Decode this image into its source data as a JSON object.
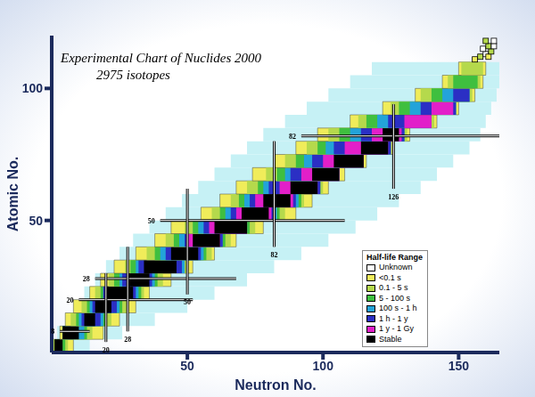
{
  "chart_data": {
    "type": "heatmap",
    "title": "Experimental Chart of Nuclides 2000",
    "subtitle": "2975 isotopes",
    "x_label": "Neutron No.",
    "y_label": "Atomic No.",
    "xlim": [
      0,
      165
    ],
    "ylim": [
      0,
      120
    ],
    "xticks": [
      50,
      100,
      150
    ],
    "yticks": [
      50,
      100
    ],
    "legend": "lower right",
    "legend_title": "Half-life Range",
    "half_life_classes": [
      {
        "label": "Unknown",
        "color": "#ffffff"
      },
      {
        "label": "<0.1 s",
        "color": "#f0ec5a"
      },
      {
        "label": "0.1 - 5 s",
        "color": "#b5d94c"
      },
      {
        "label": "5 - 100 s",
        "color": "#3fbf3f"
      },
      {
        "label": "100 s - 1 h",
        "color": "#23a3d9"
      },
      {
        "label": "1 h - 1 y",
        "color": "#2b2fc4"
      },
      {
        "label": "1 y - 1 Gy",
        "color": "#e21fc9"
      },
      {
        "label": "Stable",
        "color": "#000000"
      }
    ],
    "predicted_region": {
      "color": "#c6f1f5"
    },
    "rows": [
      {
        "z": [
          0,
          5
        ],
        "predicted": [
          0,
          14
        ],
        "bands": [
          [
            1,
            0,
            8
          ],
          [
            2,
            0,
            6
          ],
          [
            3,
            1,
            5
          ],
          [
            7,
            1,
            4
          ]
        ]
      },
      {
        "z": [
          5,
          10
        ],
        "predicted": [
          2,
          26
        ],
        "bands": [
          [
            1,
            3,
            19
          ],
          [
            2,
            4,
            15
          ],
          [
            3,
            4,
            13
          ],
          [
            4,
            4,
            12
          ],
          [
            7,
            4,
            10
          ]
        ]
      },
      {
        "z": [
          10,
          15
        ],
        "predicted": [
          5,
          38
        ],
        "bands": [
          [
            1,
            5,
            25
          ],
          [
            2,
            7,
            22
          ],
          [
            3,
            9,
            20
          ],
          [
            4,
            10,
            19
          ],
          [
            5,
            11,
            18
          ],
          [
            7,
            12,
            16
          ]
        ]
      },
      {
        "z": [
          15,
          20
        ],
        "predicted": [
          8,
          50
        ],
        "bands": [
          [
            1,
            8,
            31
          ],
          [
            2,
            11,
            28
          ],
          [
            3,
            13,
            26
          ],
          [
            4,
            14,
            25
          ],
          [
            5,
            15,
            24
          ],
          [
            7,
            16,
            22
          ]
        ]
      },
      {
        "z": [
          20,
          25
        ],
        "predicted": [
          12,
          60
        ],
        "bands": [
          [
            1,
            14,
            36
          ],
          [
            2,
            16,
            34
          ],
          [
            3,
            18,
            33
          ],
          [
            4,
            19,
            32
          ],
          [
            5,
            19,
            31
          ],
          [
            7,
            20,
            30
          ]
        ]
      },
      {
        "z": [
          25,
          30
        ],
        "predicted": [
          16,
          72
        ],
        "bands": [
          [
            1,
            18,
            44
          ],
          [
            2,
            21,
            41
          ],
          [
            3,
            23,
            39
          ],
          [
            4,
            25,
            38
          ],
          [
            5,
            26,
            37
          ],
          [
            7,
            28,
            36
          ]
        ]
      },
      {
        "z": [
          30,
          35
        ],
        "predicted": [
          20,
          82
        ],
        "bands": [
          [
            1,
            23,
            52
          ],
          [
            2,
            27,
            50
          ],
          [
            3,
            29,
            49
          ],
          [
            4,
            31,
            49
          ],
          [
            5,
            32,
            48
          ],
          [
            7,
            34,
            46
          ]
        ]
      },
      {
        "z": [
          35,
          40
        ],
        "predicted": [
          25,
          92
        ],
        "bands": [
          [
            1,
            31,
            60
          ],
          [
            2,
            35,
            59
          ],
          [
            3,
            38,
            57
          ],
          [
            4,
            40,
            56
          ],
          [
            5,
            42,
            55
          ],
          [
            7,
            44,
            54
          ]
        ]
      },
      {
        "z": [
          40,
          45
        ],
        "predicted": [
          30,
          102
        ],
        "bands": [
          [
            1,
            38,
            68
          ],
          [
            2,
            42,
            66
          ],
          [
            3,
            45,
            64
          ],
          [
            4,
            47,
            63
          ],
          [
            5,
            49,
            63
          ],
          [
            6,
            50,
            62
          ],
          [
            7,
            52,
            62
          ]
        ]
      },
      {
        "z": [
          45,
          50
        ],
        "predicted": [
          36,
          112
        ],
        "bands": [
          [
            1,
            44,
            78
          ],
          [
            2,
            49,
            75
          ],
          [
            3,
            52,
            73
          ],
          [
            4,
            54,
            72
          ],
          [
            5,
            56,
            72
          ],
          [
            6,
            58,
            72
          ],
          [
            7,
            60,
            72
          ]
        ]
      },
      {
        "z": [
          50,
          55
        ],
        "predicted": [
          42,
          120
        ],
        "bands": [
          [
            1,
            55,
            90
          ],
          [
            2,
            59,
            86
          ],
          [
            3,
            62,
            84
          ],
          [
            4,
            64,
            83
          ],
          [
            5,
            66,
            82
          ],
          [
            6,
            68,
            81
          ],
          [
            7,
            70,
            80
          ]
        ]
      },
      {
        "z": [
          55,
          60
        ],
        "predicted": [
          48,
          128
        ],
        "bands": [
          [
            1,
            62,
            96
          ],
          [
            2,
            66,
            93
          ],
          [
            3,
            69,
            92
          ],
          [
            4,
            71,
            91
          ],
          [
            5,
            73,
            90
          ],
          [
            6,
            75,
            89
          ],
          [
            7,
            78,
            88
          ]
        ]
      },
      {
        "z": [
          60,
          65
        ],
        "predicted": [
          54,
          136
        ],
        "bands": [
          [
            1,
            68,
            102
          ],
          [
            2,
            72,
            100
          ],
          [
            3,
            76,
            99
          ],
          [
            4,
            78,
            99
          ],
          [
            5,
            80,
            99
          ],
          [
            6,
            84,
            98
          ],
          [
            7,
            88,
            98
          ]
        ]
      },
      {
        "z": [
          65,
          70
        ],
        "predicted": [
          60,
          142
        ],
        "bands": [
          [
            1,
            74,
            108
          ],
          [
            2,
            79,
            106
          ],
          [
            3,
            83,
            106
          ],
          [
            4,
            86,
            106
          ],
          [
            5,
            88,
            106
          ],
          [
            6,
            92,
            106
          ],
          [
            7,
            96,
            106
          ]
        ]
      },
      {
        "z": [
          70,
          75
        ],
        "predicted": [
          66,
          148
        ],
        "bands": [
          [
            1,
            82,
            116
          ],
          [
            2,
            86,
            115
          ],
          [
            3,
            90,
            115
          ],
          [
            4,
            93,
            115
          ],
          [
            5,
            96,
            115
          ],
          [
            6,
            100,
            115
          ],
          [
            7,
            104,
            115
          ]
        ]
      },
      {
        "z": [
          75,
          80
        ],
        "predicted": [
          72,
          154
        ],
        "bands": [
          [
            1,
            90,
            126
          ],
          [
            2,
            94,
            125
          ],
          [
            3,
            98,
            125
          ],
          [
            4,
            101,
            125
          ],
          [
            5,
            104,
            125
          ],
          [
            6,
            108,
            124
          ],
          [
            7,
            114,
            124
          ]
        ]
      },
      {
        "z": [
          80,
          85
        ],
        "predicted": [
          78,
          158
        ],
        "bands": [
          [
            1,
            98,
            132
          ],
          [
            2,
            102,
            131
          ],
          [
            3,
            106,
            130
          ],
          [
            4,
            110,
            130
          ],
          [
            5,
            114,
            130
          ],
          [
            6,
            118,
            129
          ],
          [
            7,
            122,
            128
          ]
        ]
      },
      {
        "z": [
          85,
          90
        ],
        "predicted": [
          86,
          160
        ],
        "bands": [
          [
            1,
            110,
            142
          ],
          [
            2,
            113,
            141
          ],
          [
            3,
            116,
            140
          ],
          [
            4,
            120,
            140
          ],
          [
            5,
            124,
            140
          ],
          [
            6,
            130,
            140
          ]
        ]
      },
      {
        "z": [
          90,
          95
        ],
        "predicted": [
          94,
          162
        ],
        "bands": [
          [
            1,
            122,
            150
          ],
          [
            2,
            125,
            149
          ],
          [
            3,
            128,
            149
          ],
          [
            4,
            132,
            149
          ],
          [
            5,
            136,
            149
          ],
          [
            6,
            140,
            148
          ]
        ]
      },
      {
        "z": [
          95,
          100
        ],
        "predicted": [
          102,
          164
        ],
        "bands": [
          [
            1,
            134,
            156
          ],
          [
            2,
            136,
            155
          ],
          [
            3,
            140,
            154
          ],
          [
            4,
            144,
            154
          ],
          [
            5,
            148,
            154
          ]
        ]
      },
      {
        "z": [
          100,
          105
        ],
        "predicted": [
          110,
          165
        ],
        "bands": [
          [
            1,
            144,
            159
          ],
          [
            2,
            146,
            158
          ],
          [
            3,
            148,
            157
          ]
        ]
      },
      {
        "z": [
          105,
          110
        ],
        "predicted": [
          118,
          165
        ],
        "bands": [
          [
            1,
            150,
            160
          ],
          [
            2,
            151,
            159
          ]
        ]
      }
    ],
    "superheavy": [
      [
        156,
        111,
        1
      ],
      [
        158,
        112,
        2
      ],
      [
        160,
        113,
        0
      ],
      [
        161,
        112,
        1
      ],
      [
        162,
        114,
        2
      ],
      [
        159,
        115,
        0
      ],
      [
        161,
        116,
        2
      ],
      [
        163,
        116,
        0
      ],
      [
        160,
        118,
        2
      ],
      [
        163,
        118,
        0
      ]
    ],
    "magic_numbers": {
      "protons": [
        {
          "value": 8,
          "n": [
            3,
            14
          ]
        },
        {
          "value": 20,
          "n": [
            10,
            52
          ]
        },
        {
          "value": 28,
          "n": [
            16,
            68
          ]
        },
        {
          "value": 50,
          "n": [
            40,
            108
          ]
        },
        {
          "value": 82,
          "n": [
            92,
            165
          ]
        }
      ],
      "neutrons": [
        {
          "value": 20,
          "z": [
            4,
            30
          ]
        },
        {
          "value": 28,
          "z": [
            8,
            40
          ]
        },
        {
          "value": 50,
          "z": [
            22,
            62
          ]
        },
        {
          "value": 82,
          "z": [
            40,
            80
          ]
        },
        {
          "value": 126,
          "z": [
            62,
            94
          ]
        }
      ]
    }
  }
}
